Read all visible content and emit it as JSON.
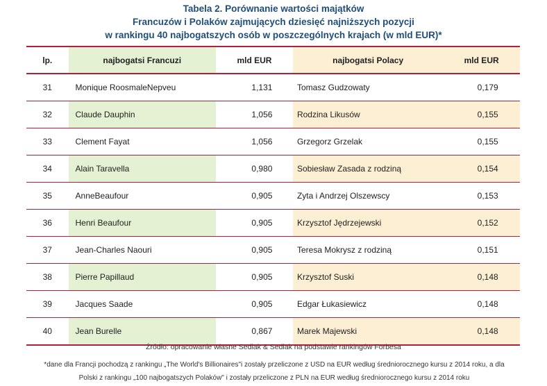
{
  "title": {
    "line1": "Tabela 2. Porównanie wartości majątków",
    "line2": "Francuzów i Polaków zajmujących dziesięć najniższych pozycji",
    "line3": "w rankingu 40 najbogatszych osób w poszczególnych krajach (w mld EUR)*"
  },
  "headers": {
    "lp": "lp.",
    "fr": "najbogatsi Francuzi",
    "v1": "mld EUR",
    "pl": "najbogatsi Polacy",
    "v2": "mld EUR"
  },
  "rows": [
    {
      "lp": "31",
      "fr": "Monique RoosmaleNepveu",
      "v1": "1,131",
      "pl": "Tomasz Gudzowaty",
      "v2": "0,179"
    },
    {
      "lp": "32",
      "fr": "Claude Dauphin",
      "v1": "1,056",
      "pl": "Rodzina Likusów",
      "v2": "0,155"
    },
    {
      "lp": "33",
      "fr": "Clement Fayat",
      "v1": "1,056",
      "pl": "Grzegorz Grzelak",
      "v2": "0,155"
    },
    {
      "lp": "34",
      "fr": "Alain Taravella",
      "v1": "0,980",
      "pl": "Sobiesław Zasada z rodziną",
      "v2": "0,154"
    },
    {
      "lp": "35",
      "fr": "AnneBeaufour",
      "v1": "0,905",
      "pl": "Zyta i Andrzej Olszewscy",
      "v2": "0,153"
    },
    {
      "lp": "36",
      "fr": "Henri Beaufour",
      "v1": "0,905",
      "pl": "Krzysztof Jędrzejewski",
      "v2": "0,152"
    },
    {
      "lp": "37",
      "fr": "Jean-Charles Naouri",
      "v1": "0,905",
      "pl": "Teresa Mokrysz z rodziną",
      "v2": "0,151"
    },
    {
      "lp": "38",
      "fr": "Pierre Papillaud",
      "v1": "0,905",
      "pl": "Krzysztof Suski",
      "v2": "0,148"
    },
    {
      "lp": "39",
      "fr": "Jacques Saade",
      "v1": "0,905",
      "pl": "Edgar Łukasiewicz",
      "v2": "0,148"
    },
    {
      "lp": "40",
      "fr": "Jean Burelle",
      "v1": "0,867",
      "pl": "Marek Majewski",
      "v2": "0,148"
    }
  ],
  "footer": {
    "source": "Źródło: opracowanie własne Sedlak & Sedlak na podstawie rankingów Forbesa",
    "note_line1": "*dane dla Francji pochodzą z rankingu „The World's Billionaires\"i zostały przeliczone z USD na EUR według średniorocznego kursu z 2014 roku, a dla",
    "note_line2": "Polski z rankingu „100 najbogatszych Polaków\" i zostały przeliczone z PLN na EUR według średniorocznego kursu z 2014 roku"
  },
  "colors": {
    "title": "#1f4e79",
    "rule": "#b0203a",
    "green_fill": "#e4f1d2",
    "cream_fill": "#fdefd3"
  }
}
